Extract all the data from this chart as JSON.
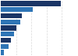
{
  "values": [
    79,
    42,
    28,
    25,
    20,
    17,
    13,
    10,
    4
  ],
  "bar_colors": [
    "#1a3566",
    "#2e75b6",
    "#1a3566",
    "#2e75b6",
    "#1a3566",
    "#2e75b6",
    "#1a3566",
    "#2e75b6",
    "#2e75b6"
  ],
  "background_color": "#ffffff",
  "xlim": [
    0,
    100
  ],
  "grid_color": "#d9d9d9"
}
